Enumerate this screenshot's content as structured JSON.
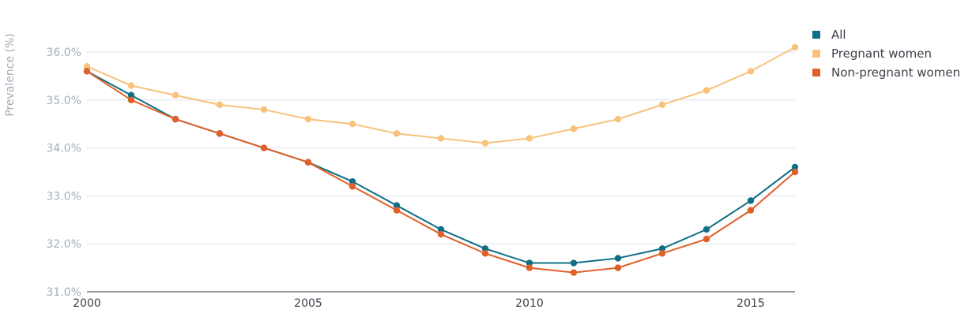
{
  "chart_data": {
    "type": "line",
    "ylabel": "Prevalence (%)",
    "x": [
      2000,
      2001,
      2002,
      2003,
      2004,
      2005,
      2006,
      2007,
      2008,
      2009,
      2010,
      2011,
      2012,
      2013,
      2014,
      2015,
      2016
    ],
    "xticks": [
      "2000",
      "2005",
      "2010",
      "2015"
    ],
    "xlim": [
      2000,
      2016
    ],
    "ylim": [
      31.0,
      36.5
    ],
    "yticks": [
      "31.0%",
      "32.0%",
      "33.0%",
      "34.0%",
      "35.0%",
      "36.0%"
    ],
    "grid": true,
    "legend_position": "top-right",
    "series": [
      {
        "name": "All",
        "color": "#0f6f86",
        "values": [
          35.6,
          35.1,
          34.6,
          34.3,
          34.0,
          33.7,
          33.3,
          32.8,
          32.3,
          31.9,
          31.6,
          31.6,
          31.7,
          31.9,
          32.3,
          32.9,
          33.6
        ]
      },
      {
        "name": "Pregnant women",
        "color": "#f8c27a",
        "values": [
          35.7,
          35.3,
          35.1,
          34.9,
          34.8,
          34.6,
          34.5,
          34.3,
          34.2,
          34.1,
          34.2,
          34.4,
          34.6,
          34.9,
          35.2,
          35.6,
          36.1
        ]
      },
      {
        "name": "Non-pregnant women",
        "color": "#e0602a",
        "values": [
          35.6,
          35.0,
          34.6,
          34.3,
          34.0,
          33.7,
          33.2,
          32.7,
          32.2,
          31.8,
          31.5,
          31.4,
          31.5,
          31.8,
          32.1,
          32.7,
          33.5
        ]
      }
    ]
  }
}
